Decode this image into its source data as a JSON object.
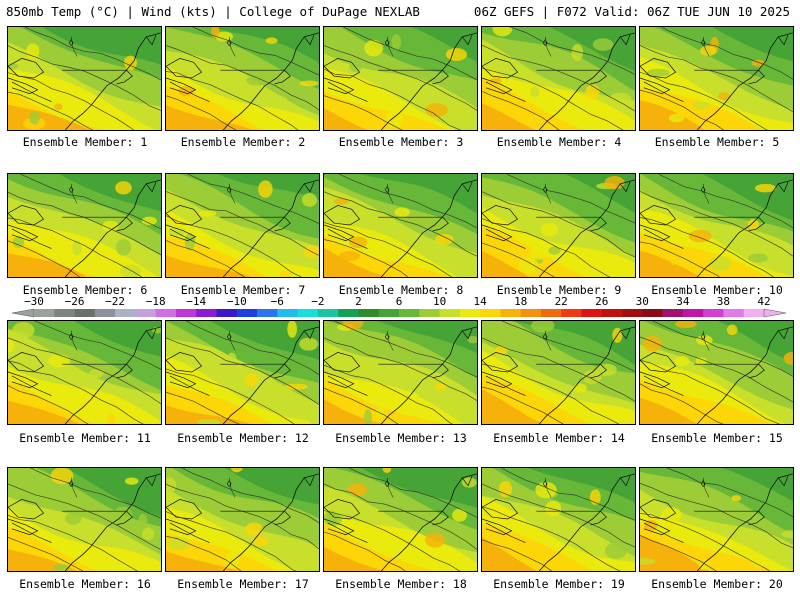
{
  "header": {
    "left": "850mb Temp (°C) | Wind (kts) | College of DuPage NEXLAB",
    "right": "06Z GEFS | F072 Valid: 06Z TUE JUN 10 2025"
  },
  "caption_prefix": "Ensemble Member:",
  "members": [
    {
      "number": "1"
    },
    {
      "number": "2"
    },
    {
      "number": "3"
    },
    {
      "number": "4"
    },
    {
      "number": "5"
    },
    {
      "number": "6"
    },
    {
      "number": "7"
    },
    {
      "number": "8"
    },
    {
      "number": "9"
    },
    {
      "number": "10"
    },
    {
      "number": "11"
    },
    {
      "number": "12"
    },
    {
      "number": "13"
    },
    {
      "number": "14"
    },
    {
      "number": "15"
    },
    {
      "number": "16"
    },
    {
      "number": "17"
    },
    {
      "number": "18"
    },
    {
      "number": "19"
    },
    {
      "number": "20"
    }
  ],
  "colorbar": {
    "labels": [
      "−30",
      "−26",
      "−22",
      "−18",
      "−14",
      "−10",
      "−6",
      "−2",
      "2",
      "6",
      "10",
      "14",
      "18",
      "22",
      "26",
      "30",
      "34",
      "38",
      "42"
    ],
    "colors": [
      "#9aa19a",
      "#7e857e",
      "#6a706a",
      "#8c929c",
      "#aab3c4",
      "#c6a0dc",
      "#d06ee6",
      "#c035d6",
      "#8a1bd0",
      "#3c17c6",
      "#1c3fe0",
      "#2a74ee",
      "#22bbee",
      "#18ddd8",
      "#1ac6a0",
      "#17a058",
      "#2e8d2a",
      "#46a336",
      "#67b838",
      "#9ccc36",
      "#c8df2c",
      "#eaea0c",
      "#fdd608",
      "#f6b20a",
      "#f29110",
      "#f06a12",
      "#ec3a14",
      "#dc1414",
      "#c01010",
      "#a00e0e",
      "#8a0c18",
      "#a0126e",
      "#c016a8",
      "#d43ed4",
      "#e47ae8",
      "#f0b0f0"
    ]
  }
}
